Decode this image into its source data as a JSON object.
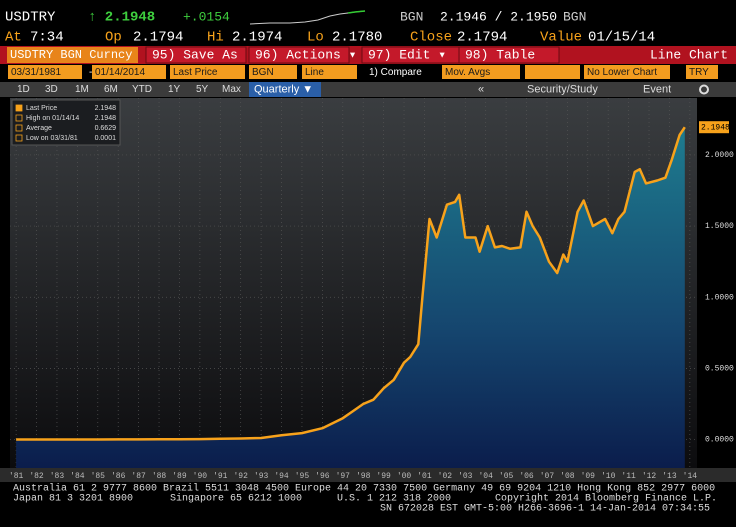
{
  "header": {
    "ticker": "USDTRY",
    "last": "↑ 2.1948",
    "change": "+.0154",
    "bid_label": "BGN",
    "bid_ask": "2.1946 / 2.1950",
    "ask_label": "BGN",
    "stats": [
      {
        "label": "At",
        "value": "7:34"
      },
      {
        "label": "Op",
        "value": "2.1794"
      },
      {
        "label": "Hi",
        "value": "2.1974"
      },
      {
        "label": "Lo",
        "value": "2.1780"
      },
      {
        "label": "Close",
        "value": "2.1794"
      },
      {
        "label": "Value",
        "value": "01/15/14"
      }
    ]
  },
  "menu": {
    "security": "USDTRY BGN Curncy",
    "items": [
      "95) Save As",
      "96) Actions ▾",
      "97) Edit ▾",
      "98) Table"
    ],
    "chart_type": "Line Chart"
  },
  "fields": [
    "03/31/1981",
    "-",
    "01/14/2014",
    "Last Price",
    "BGN",
    "Line",
    "1) Compare",
    "Mov. Avgs",
    "No Lower Chart",
    "TRY"
  ],
  "periods": [
    "1D",
    "3D",
    "1M",
    "6M",
    "YTD",
    "1Y",
    "5Y",
    "Max"
  ],
  "frequency": "Quarterly ▼",
  "tools": [
    "«",
    "Security/Study",
    "Event"
  ],
  "chart_data": {
    "type": "line",
    "legend": [
      {
        "label": "Last Price",
        "value": "2.1948"
      },
      {
        "label": "High on 01/14/14",
        "value": "2.1948"
      },
      {
        "label": "Average",
        "value": "0.6629"
      },
      {
        "label": "Low on 03/31/81",
        "value": "0.0001"
      }
    ],
    "x": [
      1981,
      1982,
      1983,
      1984,
      1985,
      1986,
      1987,
      1988,
      1989,
      1990,
      1991,
      1992,
      1993,
      1994,
      1995,
      1996,
      1997,
      1997.5,
      1998,
      1998.5,
      1999,
      1999.5,
      2000,
      2000.3,
      2000.7,
      2000.9,
      2001.25,
      2001.6,
      2002.1,
      2002.5,
      2002.7,
      2003.0,
      2003.5,
      2003.7,
      2004.1,
      2004.45,
      2004.8,
      2005.2,
      2005.7,
      2006.0,
      2006.3,
      2006.65,
      2007.1,
      2007.5,
      2007.8,
      2008.0,
      2008.5,
      2008.8,
      2009.25,
      2009.85,
      2010.2,
      2010.5,
      2010.8,
      2011.3,
      2011.55,
      2011.85,
      2012.4,
      2012.8,
      2013.1,
      2013.5,
      2013.75
    ],
    "series": [
      {
        "name": "Last Price",
        "color": "#f7a21b",
        "values": [
          0.0001,
          0.0002,
          0.0003,
          0.0004,
          0.0005,
          0.0007,
          0.001,
          0.0018,
          0.0023,
          0.0029,
          0.005,
          0.007,
          0.011,
          0.03,
          0.045,
          0.08,
          0.15,
          0.2,
          0.25,
          0.28,
          0.36,
          0.42,
          0.54,
          0.58,
          0.67,
          1.0,
          1.55,
          1.42,
          1.65,
          1.67,
          1.72,
          1.42,
          1.42,
          1.32,
          1.5,
          1.35,
          1.36,
          1.34,
          1.35,
          1.6,
          1.5,
          1.42,
          1.25,
          1.17,
          1.3,
          1.25,
          1.6,
          1.68,
          1.5,
          1.55,
          1.45,
          1.55,
          1.6,
          1.88,
          1.9,
          1.8,
          1.82,
          1.84,
          1.96,
          2.14,
          2.1948
        ]
      }
    ],
    "xlim": [
      1980.7,
      2014.35
    ],
    "ylim": [
      -0.2,
      2.4
    ],
    "xticks": [
      {
        "value": 1981,
        "label": "'81"
      },
      {
        "value": 1982,
        "label": "'82"
      },
      {
        "value": 1983,
        "label": "'83"
      },
      {
        "value": 1984,
        "label": "'84"
      },
      {
        "value": 1985,
        "label": "'85"
      },
      {
        "value": 1986,
        "label": "'86"
      },
      {
        "value": 1987,
        "label": "'87"
      },
      {
        "value": 1988,
        "label": "'88"
      },
      {
        "value": 1989,
        "label": "'89"
      },
      {
        "value": 1990,
        "label": "'90"
      },
      {
        "value": 1991,
        "label": "'91"
      },
      {
        "value": 1992,
        "label": "'92"
      },
      {
        "value": 1993,
        "label": "'93"
      },
      {
        "value": 1994,
        "label": "'94"
      },
      {
        "value": 1995,
        "label": "'95"
      },
      {
        "value": 1996,
        "label": "'96"
      },
      {
        "value": 1997,
        "label": "'97"
      },
      {
        "value": 1998,
        "label": "'98"
      },
      {
        "value": 1999,
        "label": "'99"
      },
      {
        "value": 2000,
        "label": "'00"
      },
      {
        "value": 2001,
        "label": "'01"
      },
      {
        "value": 2002,
        "label": "'02"
      },
      {
        "value": 2003,
        "label": "'03"
      },
      {
        "value": 2004,
        "label": "'04"
      },
      {
        "value": 2005,
        "label": "'05"
      },
      {
        "value": 2006,
        "label": "'06"
      },
      {
        "value": 2007,
        "label": "'07"
      },
      {
        "value": 2008,
        "label": "'08"
      },
      {
        "value": 2009,
        "label": "'09"
      },
      {
        "value": 2010,
        "label": "'10"
      },
      {
        "value": 2011,
        "label": "'11"
      },
      {
        "value": 2012,
        "label": "'12"
      },
      {
        "value": 2013,
        "label": "'13"
      },
      {
        "value": 2014,
        "label": "'14"
      }
    ],
    "yticks": [
      {
        "value": 0,
        "label": "0.0000"
      },
      {
        "value": 0.5,
        "label": "0.5000"
      },
      {
        "value": 1,
        "label": "1.0000"
      },
      {
        "value": 1.5,
        "label": "1.5000"
      },
      {
        "value": 2,
        "label": "2.0000"
      }
    ],
    "grid": true
  },
  "footer": [
    "Australia 61 2 9777 8600 Brazil 5511 3048 4500 Europe 44 20 7330 7500 Germany 49 69 9204 1210 Hong Kong 852 2977 6000",
    "Japan 81 3 3201 8900",
    "Singapore 65 6212 1000",
    "U.S. 1 212 318 2000",
    "Copyright 2014 Bloomberg Finance L.P.",
    "SN 672028 EST  GMT-5:00 H266-3696-1 14-Jan-2014 07:34:55"
  ]
}
